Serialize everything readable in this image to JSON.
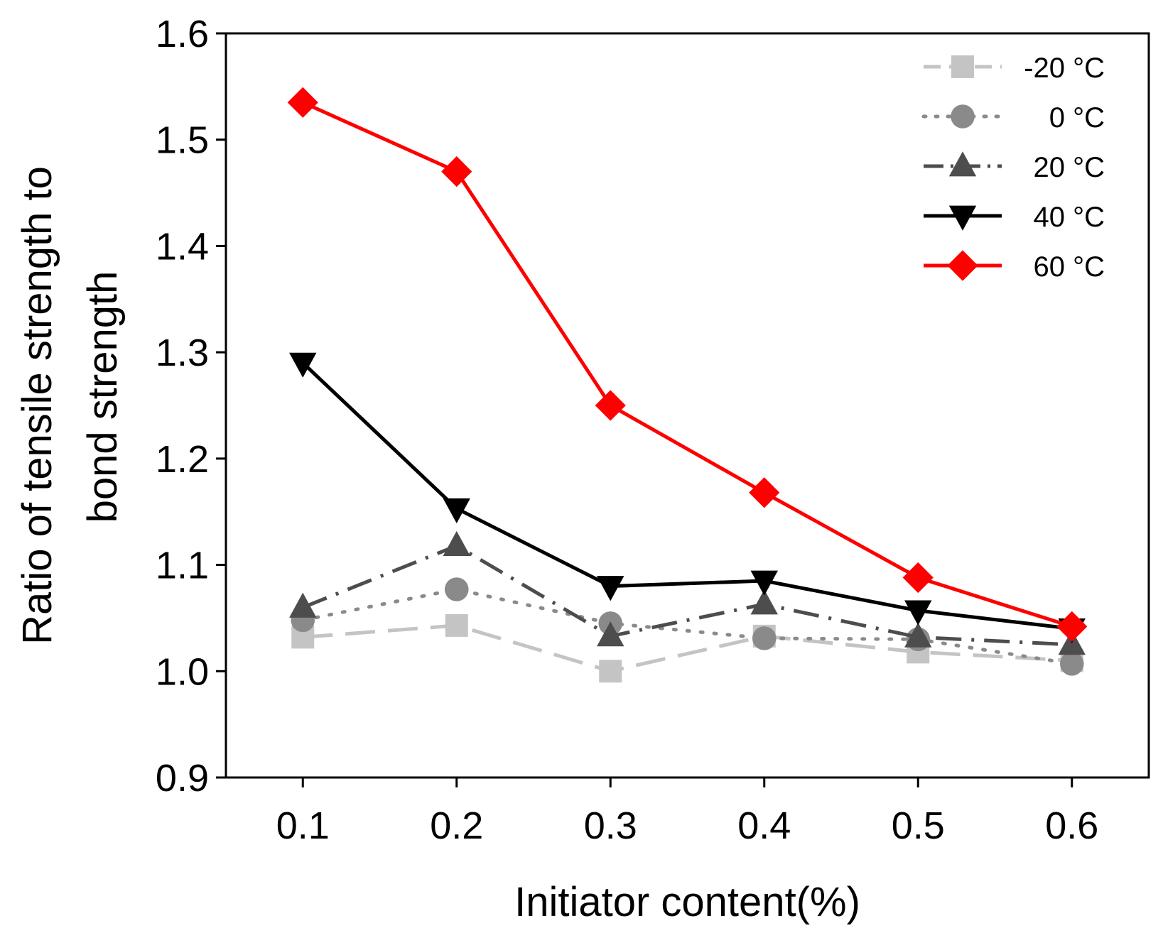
{
  "chart_data": {
    "type": "line",
    "title": "",
    "xlabel": "Initiator content(%)",
    "ylabel": [
      "Ratio of tensile strength to",
      "bond strength"
    ],
    "x": [
      0.1,
      0.2,
      0.3,
      0.4,
      0.5,
      0.6
    ],
    "x_tick_labels": [
      "0.1",
      "0.2",
      "0.3",
      "0.4",
      "0.5",
      "0.6"
    ],
    "xlim": [
      0.05,
      0.65
    ],
    "ylim": [
      0.9,
      1.6
    ],
    "y_ticks": [
      0.9,
      1.0,
      1.1,
      1.2,
      1.3,
      1.4,
      1.5,
      1.6
    ],
    "y_tick_labels": [
      "0.9",
      "1.0",
      "1.1",
      "1.2",
      "1.3",
      "1.4",
      "1.5",
      "1.6"
    ],
    "grid": false,
    "legend_position": "top-right",
    "series": [
      {
        "name": "-20 °C",
        "marker": "square",
        "line_style": "dashed",
        "color": "#c4c4c4",
        "values": [
          1.032,
          1.043,
          1.0,
          1.033,
          1.018,
          1.01
        ]
      },
      {
        "name": "0 °C",
        "marker": "circle",
        "line_style": "dotted",
        "color": "#8a8a8a",
        "values": [
          1.048,
          1.077,
          1.045,
          1.031,
          1.03,
          1.007
        ]
      },
      {
        "name": "20 °C",
        "marker": "triangle-up",
        "line_style": "dash-dot",
        "color": "#4d4d4d",
        "values": [
          1.06,
          1.118,
          1.033,
          1.063,
          1.032,
          1.025
        ]
      },
      {
        "name": "40 °C",
        "marker": "triangle-down",
        "line_style": "solid",
        "color": "#000000",
        "values": [
          1.29,
          1.153,
          1.08,
          1.085,
          1.057,
          1.04
        ]
      },
      {
        "name": "60 °C",
        "marker": "diamond",
        "line_style": "solid",
        "color": "#ff0000",
        "values": [
          1.535,
          1.47,
          1.25,
          1.168,
          1.088,
          1.042
        ]
      }
    ]
  }
}
